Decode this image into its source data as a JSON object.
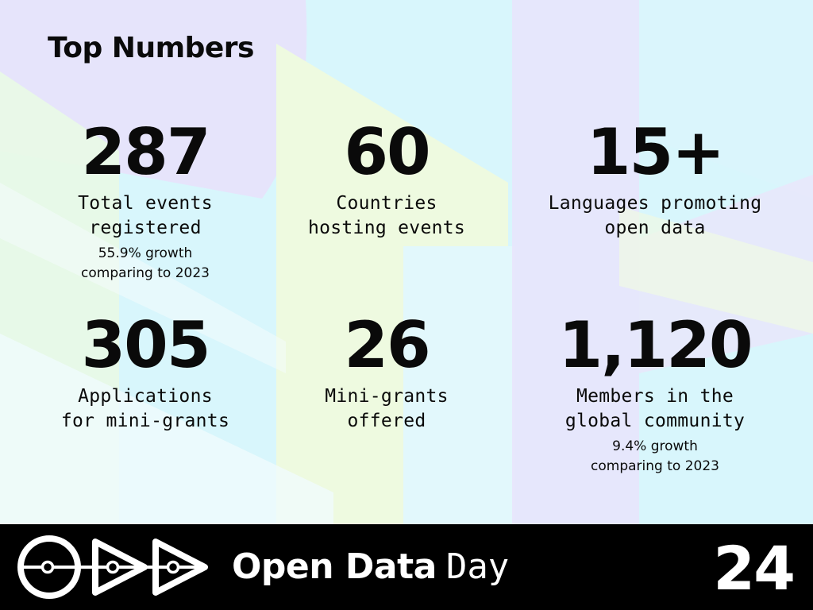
{
  "page": {
    "title": "Top Numbers"
  },
  "stats": [
    {
      "value": "287",
      "label": "Total events\nregistered",
      "note": "55.9% growth\ncomparing to 2023"
    },
    {
      "value": "60",
      "label": "Countries\nhosting events",
      "note": ""
    },
    {
      "value": "15+",
      "label": "Languages promoting\nopen data",
      "note": ""
    },
    {
      "value": "305",
      "label": "Applications\nfor mini-grants",
      "note": ""
    },
    {
      "value": "26",
      "label": "Mini-grants\noffered",
      "note": ""
    },
    {
      "value": "1,120",
      "label": "Members in the\nglobal community",
      "note": "9.4% growth\ncomparing to 2023"
    }
  ],
  "footer": {
    "brand_strong": "Open Data",
    "brand_light": "Day",
    "year": "24",
    "logo_icon": "odd-logo-icon"
  },
  "colors": {
    "footer_bg": "#000000",
    "text": "#0a0a0a",
    "bg_cyan": "#d8f6fc",
    "bg_lavender": "#e9e4fb",
    "bg_lime": "#eefae0"
  }
}
